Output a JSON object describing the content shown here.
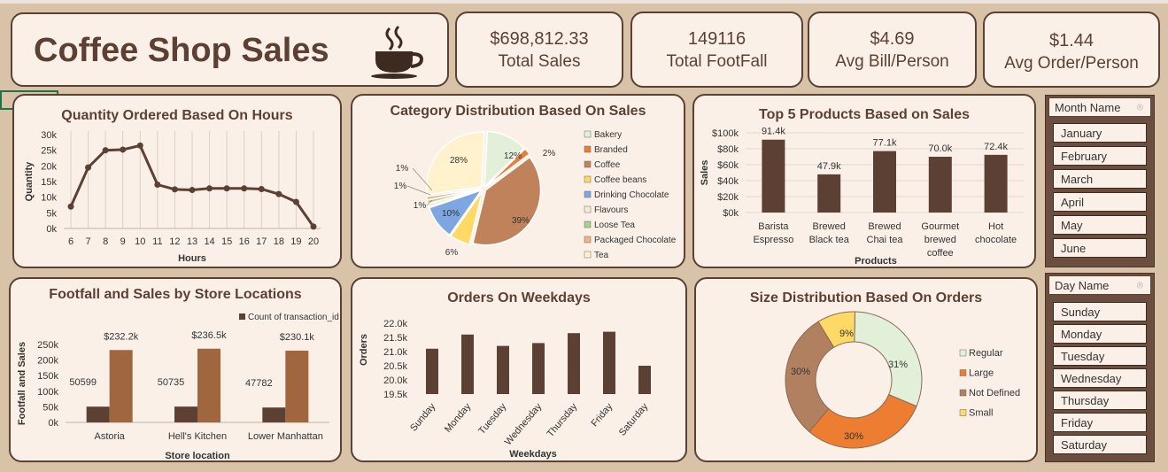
{
  "dashboard": {
    "title": "Coffee Shop Sales",
    "cup_icon": "coffee-cup-icon"
  },
  "kpis": [
    {
      "value": "$698,812.33",
      "label": "Total Sales"
    },
    {
      "value": "149116",
      "label": "Total FootFall"
    },
    {
      "value": "$4.69",
      "label": "Avg Bill/Person"
    },
    {
      "value": "$1.44",
      "label": "Avg Order/Person"
    }
  ],
  "slicers": {
    "month": {
      "header": "Month Name",
      "items": [
        "January",
        "February",
        "March",
        "April",
        "May",
        "June"
      ]
    },
    "day": {
      "header": "Day Name",
      "items": [
        "Sunday",
        "Monday",
        "Tuesday",
        "Wednesday",
        "Thursday",
        "Friday",
        "Saturday"
      ]
    }
  },
  "colors": {
    "bar_dark": "#5c4033",
    "bar_light": "#a0663e",
    "card_bg": "#fbf0e8",
    "page_bg": "#d8c2a8"
  },
  "chart_data": [
    {
      "type": "line",
      "title": "Quantity Ordered Based On Hours",
      "xlabel": "Hours",
      "ylabel": "Quantity",
      "x": [
        6,
        7,
        8,
        9,
        10,
        11,
        12,
        13,
        14,
        15,
        16,
        17,
        18,
        19,
        20
      ],
      "values": [
        7000,
        19500,
        25000,
        25200,
        26500,
        14000,
        12500,
        12300,
        12800,
        12800,
        12800,
        12600,
        11000,
        8500,
        600
      ],
      "ylim": [
        0,
        30000
      ],
      "yticks": [
        "0k",
        "5k",
        "10k",
        "15k",
        "20k",
        "25k",
        "30k"
      ],
      "grid": "vertical"
    },
    {
      "type": "pie",
      "title": "Category Distribution Based On Sales",
      "categories": [
        "Bakery",
        "Branded",
        "Coffee",
        "Coffee beans",
        "Drinking Chocolate",
        "Flavours",
        "Loose Tea",
        "Packaged Chocolate",
        "Tea"
      ],
      "values": [
        12,
        2,
        39,
        6,
        10,
        1,
        1,
        1,
        28
      ],
      "labels": [
        "12%",
        "2%",
        "39%",
        "6%",
        "10%",
        "1%",
        "1%",
        "1%",
        "28%"
      ],
      "colors": [
        "#e2f0d9",
        "#ed7d31",
        "#c0825a",
        "#ffd966",
        "#7ea6e0",
        "#f8e8e0",
        "#a9d18e",
        "#f4b183",
        "#fff2cc"
      ],
      "legend": "right"
    },
    {
      "type": "bar",
      "title": "Top 5 Products Based on Sales",
      "xlabel": "Products",
      "ylabel": "Sales",
      "categories": [
        [
          "Barista",
          "Espresso"
        ],
        [
          "Brewed",
          "Black tea"
        ],
        [
          "Brewed",
          "Chai tea"
        ],
        [
          "Gourmet",
          "brewed",
          "coffee"
        ],
        [
          "Hot",
          "chocolate"
        ]
      ],
      "values": [
        91400,
        47900,
        77100,
        70000,
        72400
      ],
      "data_labels": [
        "91.4k",
        "47.9k",
        "77.1k",
        "70.0k",
        "72.4k"
      ],
      "ylim": [
        0,
        100000
      ],
      "yticks": [
        "$0k",
        "$20k",
        "$40k",
        "$60k",
        "$80k",
        "$100k"
      ]
    },
    {
      "type": "bar",
      "title": "Footfall and Sales by Store Locations",
      "xlabel": "Store location",
      "ylabel": "Footfall and Sales",
      "categories": [
        "Astoria",
        "Hell's Kitchen",
        "Lower Manhattan"
      ],
      "series": [
        {
          "name": "Count of transaction_id",
          "values": [
            50599,
            50735,
            47782
          ],
          "labels": [
            "50599",
            "50735",
            "47782"
          ]
        },
        {
          "values": [
            232200,
            236500,
            230100
          ],
          "labels": [
            "$232.2k",
            "$236.5k",
            "$230.1k"
          ]
        }
      ],
      "ylim": [
        0,
        250000
      ],
      "yticks": [
        "0k",
        "50k",
        "100k",
        "150k",
        "200k",
        "250k"
      ],
      "legend": "top-right"
    },
    {
      "type": "bar",
      "title": "Orders On Weekdays",
      "xlabel": "Weekdays",
      "ylabel": "Orders",
      "categories": [
        "Sunday",
        "Monday",
        "Tuesday",
        "Wednesday",
        "Thursday",
        "Friday",
        "Saturday"
      ],
      "values": [
        21100,
        21600,
        21200,
        21300,
        21650,
        21700,
        20500
      ],
      "ylim": [
        19500,
        22000
      ],
      "yticks": [
        "19.5k",
        "20.0k",
        "20.5k",
        "21.0k",
        "21.5k",
        "22.0k"
      ]
    },
    {
      "type": "pie",
      "title": "Size Distribution Based On Orders",
      "categories": [
        "Regular",
        "Large",
        "Not Defined",
        "Small"
      ],
      "values": [
        31,
        30,
        30,
        9
      ],
      "labels": [
        "31%",
        "30%",
        "30%",
        "9%"
      ],
      "colors": [
        "#e2f0d9",
        "#ed7d31",
        "#b08060",
        "#ffd966"
      ],
      "legend": "right"
    }
  ]
}
